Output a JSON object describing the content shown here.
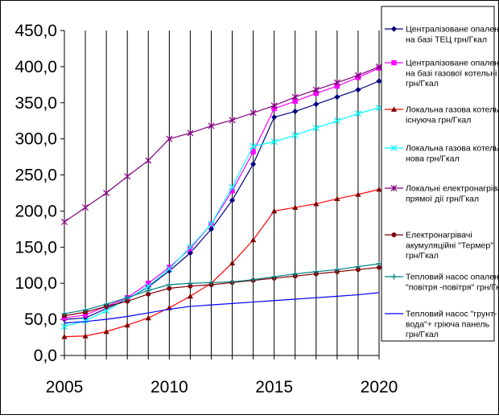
{
  "chart_data": {
    "type": "line",
    "title": "",
    "xlabel": "",
    "ylabel": "",
    "x": [
      2005,
      2006,
      2007,
      2008,
      2009,
      2010,
      2011,
      2012,
      2013,
      2014,
      2015,
      2016,
      2017,
      2018,
      2019,
      2020
    ],
    "xticks": [
      "2005",
      "2010",
      "2015",
      "2020"
    ],
    "xlim": [
      2005,
      2020
    ],
    "ylim": [
      0,
      450
    ],
    "yticks": [
      "0,0",
      "50,0",
      "100,0",
      "150,0",
      "200,0",
      "250,0",
      "300,0",
      "350,0",
      "400,0",
      "450,0"
    ],
    "grid": "vertical",
    "legend_position": "right",
    "series": [
      {
        "name": "Централізоване опалення на базі ТЕЦ грн/Гкал",
        "legend_lines": [
          "Централізоване опалення",
          "на базі ТЕЦ грн/Гкал"
        ],
        "color": "#000080",
        "marker": "diamond",
        "values": [
          50,
          52,
          65,
          78,
          95,
          117,
          142,
          175,
          215,
          265,
          330,
          338,
          348,
          358,
          368,
          380
        ]
      },
      {
        "name": "Централізоване опалення на базі газової котельні грн/Гкал",
        "legend_lines": [
          "Централізоване опалення",
          "на базі газової котельні",
          "грн/Гкал"
        ],
        "color": "#ff00ff",
        "marker": "square",
        "values": [
          52,
          56,
          68,
          80,
          100,
          122,
          148,
          182,
          228,
          282,
          342,
          352,
          363,
          373,
          385,
          398
        ]
      },
      {
        "name": "Локальна газова котельня існуюча грн/Гкал",
        "legend_lines": [
          "Локальна газова котельня",
          "існуюча грн/Гкал"
        ],
        "color": "#800000",
        "line_color": "#ff0000",
        "marker": "triangle",
        "values": [
          26,
          27,
          33,
          42,
          52,
          66,
          82,
          100,
          128,
          160,
          200,
          205,
          210,
          217,
          223,
          230
        ]
      },
      {
        "name": "Локальна газова котельня нова грн/Гкал",
        "legend_lines": [
          "Локальна газова котельня",
          "нова грн/Гкал"
        ],
        "color": "#00ffff",
        "marker": "x",
        "values": [
          40,
          48,
          62,
          78,
          96,
          120,
          150,
          182,
          233,
          290,
          296,
          305,
          315,
          325,
          335,
          343
        ]
      },
      {
        "name": "Локальні електронагрівачі прямої дії грн/Гкал",
        "legend_lines": [
          "Локальні електронагрівачі",
          "прямої дії грн/Гкал"
        ],
        "color": "#800080",
        "marker": "star",
        "values": [
          185,
          205,
          225,
          248,
          270,
          300,
          308,
          318,
          326,
          336,
          346,
          358,
          368,
          378,
          388,
          400
        ]
      },
      {
        "name": "Електронагрівачі акумуляційні \"Термер\" грн/Гкал",
        "legend_lines": [
          "Електронагрівачі",
          "акумуляційні \"Термер\"",
          "грн/Гкал"
        ],
        "color": "#800000",
        "marker": "circle",
        "values": [
          55,
          60,
          68,
          75,
          85,
          93,
          96,
          98,
          101,
          104,
          107,
          110,
          113,
          116,
          119,
          122
        ]
      },
      {
        "name": "Тепловий насос опалення \"повітря - повітря\" грн/Гкал",
        "legend_lines": [
          "Тепловий насос опалення",
          "\"повітря -повітря\" грн/Гкал"
        ],
        "color": "#008080",
        "marker": "plus",
        "values": [
          58,
          63,
          71,
          80,
          90,
          98,
          100,
          101,
          102,
          105,
          109,
          113,
          116,
          119,
          123,
          127
        ]
      },
      {
        "name": "Тепловий насос \"грунт-вода\" + гріюча панель грн/Гкал",
        "legend_lines": [
          "Тепловий насос \"грунт-",
          "вода\"+ гріюча панель",
          "грн/Гкал"
        ],
        "color": "#0000ff",
        "marker": "none",
        "values": [
          45,
          47,
          50,
          54,
          59,
          64,
          68,
          70,
          72,
          74,
          76,
          78,
          80,
          82,
          84,
          87
        ]
      }
    ]
  }
}
